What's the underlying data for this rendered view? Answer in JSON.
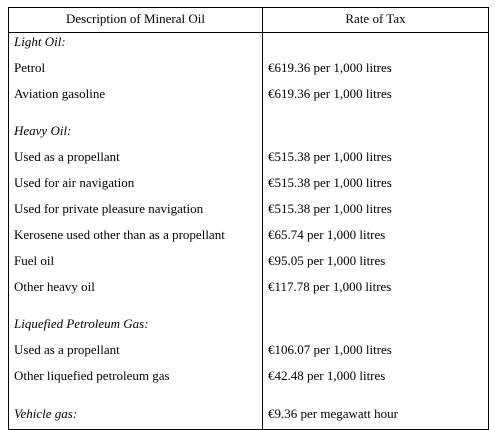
{
  "header": {
    "description_label": "Description of Mineral Oil",
    "rate_label": "Rate of Tax"
  },
  "sections": [
    {
      "heading": "Light Oil:",
      "items": [
        {
          "description": "Petrol",
          "rate": "€619.36 per 1,000 litres"
        },
        {
          "description": "Aviation gasoline",
          "rate": "€619.36 per 1,000 litres"
        }
      ]
    },
    {
      "heading": "Heavy Oil:",
      "items": [
        {
          "description": "Used as a propellant",
          "rate": "€515.38 per 1,000 litres"
        },
        {
          "description": "Used for air navigation",
          "rate": "€515.38 per 1,000 litres"
        },
        {
          "description": "Used for private pleasure navigation",
          "rate": "€515.38 per 1,000 litres"
        },
        {
          "description": "Kerosene used other than as a propellant",
          "rate": "€65.74 per 1,000 litres"
        },
        {
          "description": "Fuel oil",
          "rate": "€95.05 per 1,000 litres"
        },
        {
          "description": "Other heavy oil",
          "rate": "€117.78 per 1,000 litres"
        }
      ]
    },
    {
      "heading": "Liquefied Petroleum Gas:",
      "items": [
        {
          "description": "Used as a propellant",
          "rate": "€106.07 per 1,000 litres"
        },
        {
          "description": "Other liquefied petroleum gas",
          "rate": "€42.48 per 1,000 litres"
        }
      ]
    },
    {
      "heading": "Vehicle gas:",
      "heading_rate": "€9.36 per megawatt hour",
      "items": []
    }
  ]
}
